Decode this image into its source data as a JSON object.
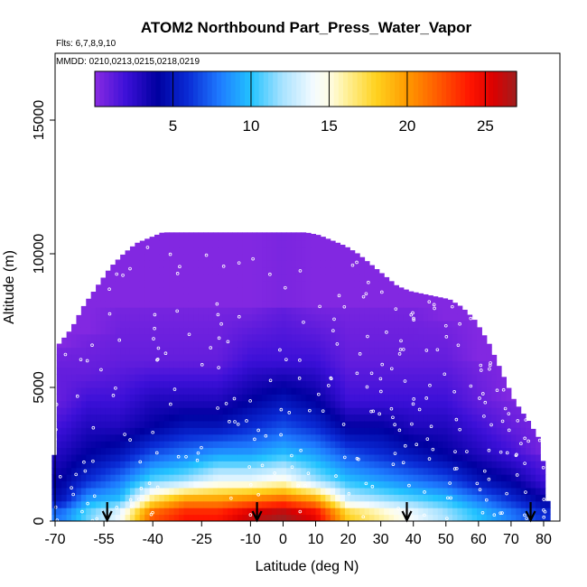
{
  "chart_data": {
    "type": "heatmap",
    "title": "ATOM2 Northbound Part_Press_Water_Vapor",
    "flights_note": "Flts: 6,7,8,9,10",
    "dates_note": "MMDD: 0210,0213,0215,0218,0219",
    "xlabel": "Latitude (deg N)",
    "ylabel": "Altitude (m)",
    "xlim": [
      -70,
      85
    ],
    "ylim": [
      0,
      17500
    ],
    "x_ticks": [
      -70,
      -55,
      -40,
      -25,
      -10,
      0,
      10,
      20,
      30,
      40,
      50,
      60,
      70,
      80
    ],
    "x_tick_labels": [
      "-70",
      "-55",
      "-40",
      "-25",
      "-10",
      "0",
      "10",
      "20",
      "30",
      "40",
      "50",
      "60",
      "70",
      "80"
    ],
    "y_ticks": [
      0,
      5000,
      10000,
      15000
    ],
    "y_tick_labels": [
      "0",
      "5000",
      "10000",
      "15000"
    ],
    "colorbar": {
      "range": [
        0,
        27
      ],
      "ticks": [
        5,
        10,
        15,
        20,
        25
      ],
      "tick_labels": [
        "5",
        "10",
        "15",
        "20",
        "25"
      ],
      "stops": [
        {
          "v": 0,
          "color": "#8a2be2"
        },
        {
          "v": 2,
          "color": "#3c10d8"
        },
        {
          "v": 4,
          "color": "#0000a0"
        },
        {
          "v": 6,
          "color": "#0a2cd6"
        },
        {
          "v": 8,
          "color": "#1e7bff"
        },
        {
          "v": 10,
          "color": "#22c3ff"
        },
        {
          "v": 12,
          "color": "#a8e2ff"
        },
        {
          "v": 14,
          "color": "#f4fbff"
        },
        {
          "v": 15,
          "color": "#fffde6"
        },
        {
          "v": 16,
          "color": "#fff2a0"
        },
        {
          "v": 18,
          "color": "#ffd21e"
        },
        {
          "v": 20,
          "color": "#ff9a00"
        },
        {
          "v": 22,
          "color": "#ff5a00"
        },
        {
          "v": 24,
          "color": "#ff1500"
        },
        {
          "v": 25.5,
          "color": "#dc0000"
        },
        {
          "v": 27,
          "color": "#a01e1e"
        }
      ]
    },
    "top_profile": {
      "lat": [
        -71,
        -69,
        -65,
        -61,
        -57,
        -53,
        -49,
        -45,
        -41,
        -37,
        -33,
        -29,
        -25,
        -21,
        -17,
        -13,
        -9,
        -5,
        -1,
        3,
        7,
        11,
        15,
        19,
        23,
        27,
        31,
        35,
        39,
        43,
        47,
        51,
        55,
        59,
        63,
        67,
        71,
        75,
        79,
        82
      ],
      "alt_m": [
        0,
        6600,
        7200,
        8100,
        8800,
        9500,
        10000,
        10400,
        10600,
        10800,
        10800,
        10800,
        10800,
        10800,
        10800,
        10800,
        10800,
        10800,
        10800,
        10800,
        10800,
        10700,
        10500,
        10300,
        10000,
        9600,
        9200,
        8800,
        8600,
        8500,
        8400,
        8300,
        8000,
        7500,
        6700,
        5600,
        4500,
        3800,
        3000,
        0
      ]
    },
    "field_columns": [
      {
        "lat": -68,
        "levels_m": [
          300,
          800,
          1500,
          2500,
          3500,
          4500,
          5500,
          6500
        ],
        "values": [
          8,
          5,
          4,
          3,
          2,
          1,
          1,
          0.5
        ]
      },
      {
        "lat": -60,
        "levels_m": [
          300,
          800,
          1500,
          2500,
          3500,
          4500,
          5500,
          7000
        ],
        "values": [
          11,
          9,
          6,
          4,
          3,
          2,
          1,
          0.5
        ]
      },
      {
        "lat": -50,
        "levels_m": [
          300,
          800,
          1500,
          2500,
          3500,
          4500,
          6000,
          8000
        ],
        "values": [
          14,
          10,
          8,
          5,
          3,
          2,
          1,
          0.5
        ]
      },
      {
        "lat": -40,
        "levels_m": [
          300,
          800,
          1500,
          2500,
          3500,
          4500,
          6000,
          8000
        ],
        "values": [
          22,
          17,
          11,
          7,
          4,
          3,
          1,
          0.5
        ]
      },
      {
        "lat": -30,
        "levels_m": [
          300,
          800,
          1500,
          2500,
          3500,
          4500,
          6000,
          8000
        ],
        "values": [
          24,
          20,
          12,
          8,
          5,
          3,
          1,
          0.5
        ]
      },
      {
        "lat": -20,
        "levels_m": [
          300,
          800,
          1500,
          2500,
          3500,
          4500,
          6000,
          8000
        ],
        "values": [
          24,
          20,
          14,
          9,
          5,
          3,
          1,
          0.5
        ]
      },
      {
        "lat": -10,
        "levels_m": [
          300,
          800,
          1500,
          2500,
          3500,
          4500,
          6000,
          8000
        ],
        "values": [
          26,
          21,
          14,
          9,
          6,
          4,
          2,
          0.5
        ]
      },
      {
        "lat": 0,
        "levels_m": [
          300,
          800,
          1500,
          2500,
          3500,
          4500,
          6000,
          8000
        ],
        "values": [
          27,
          22,
          15,
          10,
          7,
          5,
          2,
          1
        ]
      },
      {
        "lat": 10,
        "levels_m": [
          300,
          800,
          1500,
          2500,
          3500,
          4500,
          6000,
          8000
        ],
        "values": [
          25,
          20,
          12,
          9,
          6,
          4,
          2,
          0.5
        ]
      },
      {
        "lat": 20,
        "levels_m": [
          300,
          800,
          1500,
          2500,
          3500,
          4500,
          6000,
          8000
        ],
        "values": [
          18,
          13,
          10,
          7,
          4,
          2,
          1,
          0.5
        ]
      },
      {
        "lat": 30,
        "levels_m": [
          300,
          800,
          1500,
          2500,
          3500,
          4500,
          6000,
          8000
        ],
        "values": [
          16,
          12,
          9,
          6,
          4,
          2,
          1,
          0.5
        ]
      },
      {
        "lat": 40,
        "levels_m": [
          300,
          800,
          1500,
          2500,
          3500,
          4500,
          6000,
          8000
        ],
        "values": [
          14,
          11,
          8,
          5,
          3,
          2,
          1,
          0.5
        ]
      },
      {
        "lat": 50,
        "levels_m": [
          300,
          800,
          1500,
          2500,
          3500,
          4500,
          6000,
          7500
        ],
        "values": [
          12,
          10,
          7,
          4,
          3,
          2,
          1,
          0.5
        ]
      },
      {
        "lat": 60,
        "levels_m": [
          300,
          800,
          1500,
          2500,
          3500,
          4500,
          6000
        ],
        "values": [
          10,
          8,
          5,
          3,
          2,
          1,
          0.5
        ]
      },
      {
        "lat": 70,
        "levels_m": [
          300,
          800,
          1500,
          2500,
          3500,
          4500
        ],
        "values": [
          8,
          6,
          4,
          2,
          1,
          0.5
        ]
      },
      {
        "lat": 80,
        "levels_m": [
          300,
          800,
          1500,
          2500
        ],
        "values": [
          6,
          4,
          2,
          1
        ]
      }
    ],
    "arrow_latitudes": [
      -54,
      -8,
      38,
      76
    ]
  }
}
